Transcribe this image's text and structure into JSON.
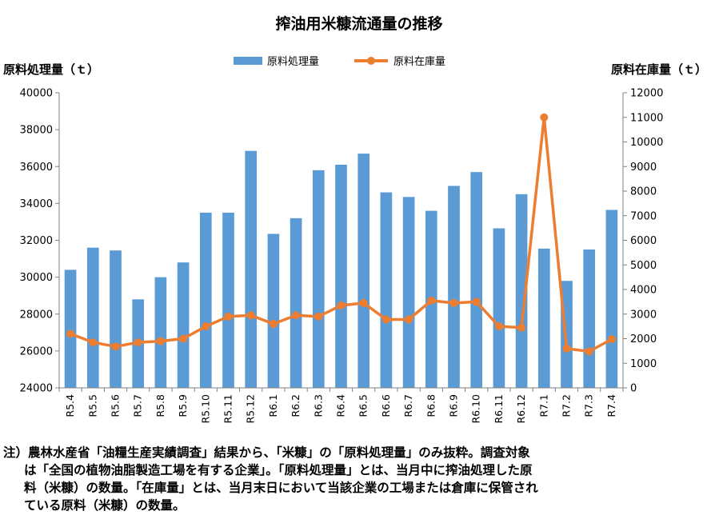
{
  "chart_data": {
    "type": "bar+line",
    "title": "搾油用米糠流通量の推移",
    "categories": [
      "R5.4",
      "R5.5",
      "R5.6",
      "R5.7",
      "R5.8",
      "R5.9",
      "R5.10",
      "R5.11",
      "R5.12",
      "R6.1",
      "R6.2",
      "R6.3",
      "R6.4",
      "R6.5",
      "R6.6",
      "R6.7",
      "R6.8",
      "R6.9",
      "R6.10",
      "R6.11",
      "R6.12",
      "R7.1",
      "R7.2",
      "R7.3",
      "R7.4"
    ],
    "y_left": {
      "label": "原料処理量（ｔ）",
      "min": 24000,
      "max": 40000,
      "step": 2000,
      "ticks": [
        "24000",
        "26000",
        "28000",
        "30000",
        "32000",
        "34000",
        "36000",
        "38000",
        "40000"
      ]
    },
    "y_right": {
      "label": "原料在庫量（ｔ）",
      "min": 0,
      "max": 12000,
      "step": 1000,
      "ticks": [
        "0",
        "1000",
        "2000",
        "3000",
        "4000",
        "5000",
        "6000",
        "7000",
        "8000",
        "9000",
        "10000",
        "11000",
        "12000"
      ]
    },
    "series": [
      {
        "name": "原料処理量",
        "type": "bar",
        "axis": "left",
        "color": "#5B9BD5",
        "values": [
          30400,
          31600,
          31450,
          28800,
          30000,
          30800,
          33500,
          33500,
          36850,
          32350,
          33200,
          35800,
          36100,
          36700,
          34600,
          34350,
          33600,
          34950,
          35700,
          32650,
          34500,
          31550,
          29800,
          31500,
          33650
        ]
      },
      {
        "name": "原料在庫量",
        "type": "line",
        "axis": "right",
        "color": "#ED7D31",
        "values": [
          2200,
          1850,
          1680,
          1850,
          1900,
          2000,
          2500,
          2900,
          2950,
          2600,
          2950,
          2900,
          3350,
          3450,
          2780,
          2780,
          3550,
          3450,
          3500,
          2500,
          2450,
          11000,
          1600,
          1480,
          1980
        ]
      }
    ],
    "legend_position": "top-center",
    "grid": false
  },
  "note": {
    "lines": [
      "注）農林水産省「油糧生産実績調査」結果から、「米糠」の「原料処理量」のみ抜粋。調査対象",
      "は「全国の植物油脂製造工場を有する企業」。「原料処理量」とは、当月中に搾油処理した原",
      "料（米糠）の数量。「在庫量」とは、当月末日において当該企業の工場または倉庫に保管され",
      "ている原料（米糠）の数量。"
    ]
  }
}
